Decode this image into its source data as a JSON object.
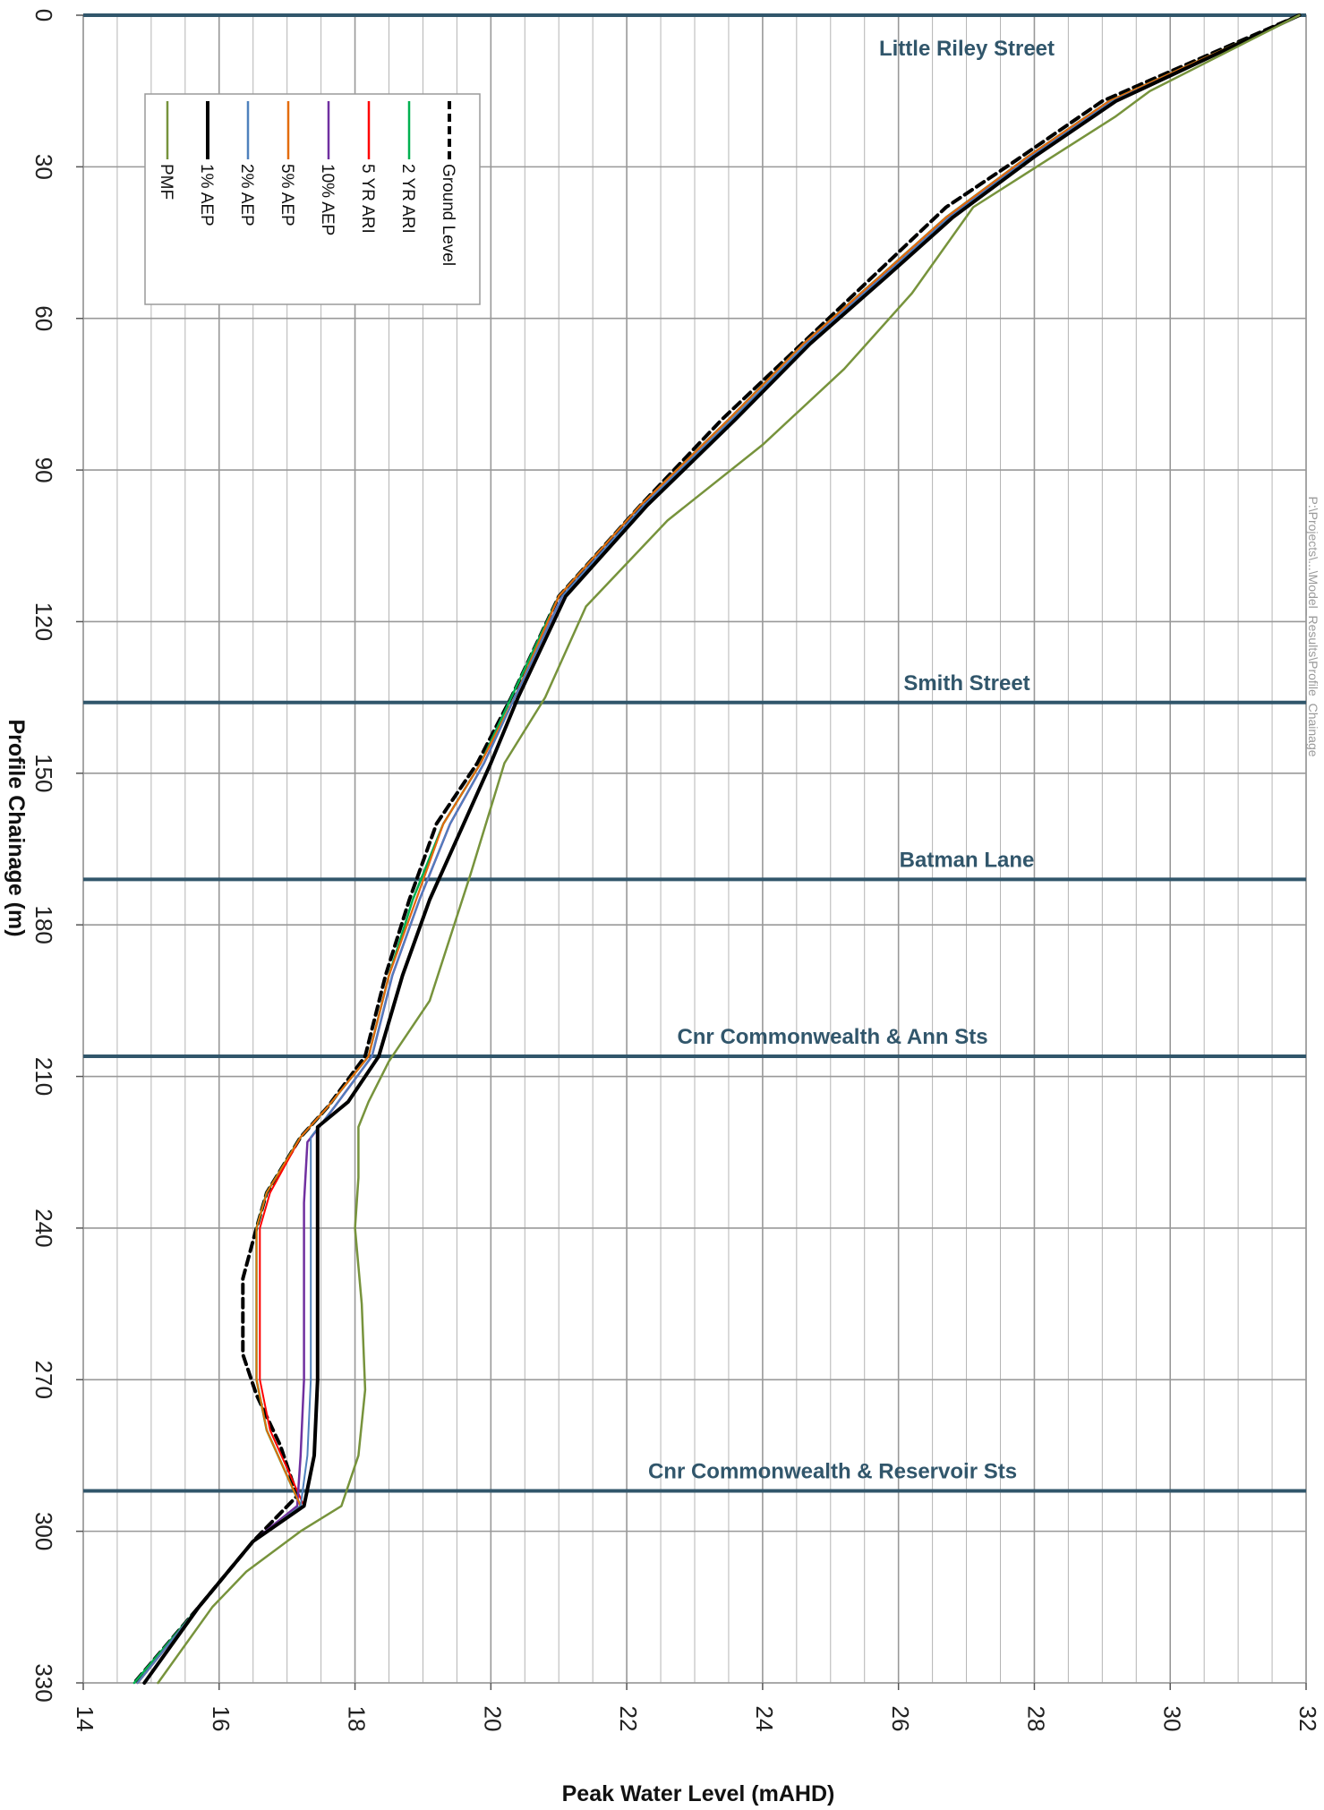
{
  "chart_data": {
    "type": "line",
    "title": "",
    "xlabel": "Peak Water Level (mAHD)",
    "ylabel": "Profile Chainage (m)",
    "xlim": [
      14,
      32
    ],
    "ylim": [
      0,
      330
    ],
    "x_ticks": [
      "14",
      "16",
      "18",
      "20",
      "22",
      "24",
      "26",
      "28",
      "30",
      "32"
    ],
    "y_ticks": [
      "0",
      "30",
      "60",
      "90",
      "120",
      "150",
      "180",
      "210",
      "240",
      "270",
      "300",
      "330"
    ],
    "grid": "on",
    "legend_position": "top-left",
    "colors": {
      "grid": "#b4b4b4",
      "street_line": "#31566b",
      "street_label": "#31566b"
    },
    "stray_text": "P:\\Projects\\...\\Model_Results\\Profile_Chainage",
    "streets": [
      {
        "label": "Little Riley Street",
        "chainage": 0
      },
      {
        "label": "Smith Street",
        "chainage": 136
      },
      {
        "label": "Batman Lane",
        "chainage": 171
      },
      {
        "label": "Cnr Commonwealth & Ann Sts",
        "chainage": 206
      },
      {
        "label": "Cnr Commonwealth & Reservoir Sts",
        "chainage": 292
      }
    ],
    "series": [
      {
        "name": "PMF",
        "color": "#77933c",
        "width": 2.5,
        "dash": "",
        "points": [
          [
            31.9,
            0
          ],
          [
            29.7,
            15
          ],
          [
            29.2,
            20
          ],
          [
            27.1,
            38
          ],
          [
            26.2,
            55
          ],
          [
            25.2,
            70
          ],
          [
            24.0,
            85
          ],
          [
            22.6,
            100
          ],
          [
            21.4,
            117
          ],
          [
            20.8,
            135
          ],
          [
            20.2,
            148
          ],
          [
            19.7,
            170
          ],
          [
            19.1,
            195
          ],
          [
            18.5,
            207
          ],
          [
            18.2,
            215
          ],
          [
            18.05,
            220
          ],
          [
            18.05,
            230
          ],
          [
            18.0,
            240
          ],
          [
            18.1,
            255
          ],
          [
            18.15,
            272
          ],
          [
            18.05,
            285
          ],
          [
            17.8,
            295
          ],
          [
            17.2,
            300
          ],
          [
            16.4,
            308
          ],
          [
            15.9,
            315
          ],
          [
            15.1,
            330
          ]
        ]
      },
      {
        "name": "1% AEP",
        "color": "#000000",
        "width": 4,
        "dash": "",
        "points": [
          [
            31.9,
            0
          ],
          [
            29.2,
            17
          ],
          [
            28.0,
            28
          ],
          [
            26.8,
            40
          ],
          [
            25.8,
            52
          ],
          [
            24.7,
            65
          ],
          [
            23.6,
            80
          ],
          [
            22.3,
            97
          ],
          [
            21.1,
            115
          ],
          [
            20.4,
            135
          ],
          [
            20.0,
            148
          ],
          [
            19.6,
            160
          ],
          [
            19.1,
            175
          ],
          [
            18.7,
            190
          ],
          [
            18.35,
            206
          ],
          [
            17.9,
            215
          ],
          [
            17.45,
            220
          ],
          [
            17.45,
            240
          ],
          [
            17.45,
            270
          ],
          [
            17.4,
            285
          ],
          [
            17.25,
            295
          ],
          [
            16.5,
            302
          ],
          [
            15.7,
            315
          ],
          [
            14.9,
            330
          ]
        ]
      },
      {
        "name": "2% AEP",
        "color": "#4f81bd",
        "width": 2,
        "dash": "",
        "points": [
          [
            31.9,
            0
          ],
          [
            29.15,
            17
          ],
          [
            27.95,
            28
          ],
          [
            26.75,
            40
          ],
          [
            25.75,
            52
          ],
          [
            24.65,
            65
          ],
          [
            23.55,
            80
          ],
          [
            22.25,
            97
          ],
          [
            21.05,
            115
          ],
          [
            20.35,
            135
          ],
          [
            19.9,
            148
          ],
          [
            19.4,
            160
          ],
          [
            18.95,
            175
          ],
          [
            18.55,
            190
          ],
          [
            18.25,
            206
          ],
          [
            17.7,
            216
          ],
          [
            17.35,
            222
          ],
          [
            17.35,
            240
          ],
          [
            17.35,
            270
          ],
          [
            17.3,
            285
          ],
          [
            17.2,
            295
          ],
          [
            16.5,
            302
          ],
          [
            15.7,
            315
          ],
          [
            14.8,
            330
          ]
        ]
      },
      {
        "name": "5% AEP",
        "color": "#e46c0a",
        "width": 2,
        "dash": "",
        "points": [
          [
            31.9,
            0
          ],
          [
            29.1,
            17
          ],
          [
            27.9,
            28
          ],
          [
            26.7,
            40
          ],
          [
            25.7,
            52
          ],
          [
            24.6,
            65
          ],
          [
            23.5,
            80
          ],
          [
            22.2,
            97
          ],
          [
            21.0,
            115
          ],
          [
            20.35,
            135
          ],
          [
            19.85,
            148
          ],
          [
            19.3,
            160
          ],
          [
            18.9,
            175
          ],
          [
            18.5,
            190
          ],
          [
            18.2,
            206
          ],
          [
            17.6,
            216
          ],
          [
            17.2,
            222
          ],
          [
            16.7,
            233
          ],
          [
            16.55,
            240
          ],
          [
            16.55,
            270
          ],
          [
            16.7,
            280
          ],
          [
            17.2,
            295
          ],
          [
            16.5,
            302
          ],
          [
            15.7,
            315
          ],
          [
            14.8,
            330
          ]
        ]
      },
      {
        "name": "10% AEP",
        "color": "#7030a0",
        "width": 2.5,
        "dash": "",
        "points": [
          [
            31.9,
            0
          ],
          [
            29.15,
            17
          ],
          [
            27.95,
            28
          ],
          [
            26.75,
            40
          ],
          [
            25.75,
            52
          ],
          [
            24.65,
            65
          ],
          [
            23.55,
            80
          ],
          [
            22.25,
            97
          ],
          [
            21.05,
            115
          ],
          [
            20.35,
            135
          ],
          [
            19.9,
            148
          ],
          [
            19.4,
            160
          ],
          [
            18.95,
            175
          ],
          [
            18.55,
            190
          ],
          [
            18.25,
            206
          ],
          [
            17.7,
            216
          ],
          [
            17.3,
            223
          ],
          [
            17.25,
            235
          ],
          [
            17.25,
            270
          ],
          [
            17.2,
            285
          ],
          [
            17.15,
            295
          ],
          [
            16.5,
            302
          ],
          [
            15.7,
            315
          ],
          [
            14.8,
            330
          ]
        ]
      },
      {
        "name": "5 YR ARI",
        "color": "#ff0000",
        "width": 2,
        "dash": "",
        "points": [
          [
            31.9,
            0
          ],
          [
            29.1,
            17
          ],
          [
            27.9,
            28
          ],
          [
            26.7,
            40
          ],
          [
            25.7,
            52
          ],
          [
            24.6,
            65
          ],
          [
            23.5,
            80
          ],
          [
            22.2,
            97
          ],
          [
            21.0,
            115
          ],
          [
            20.35,
            135
          ],
          [
            19.85,
            148
          ],
          [
            19.3,
            160
          ],
          [
            18.9,
            175
          ],
          [
            18.5,
            190
          ],
          [
            18.2,
            206
          ],
          [
            17.6,
            216
          ],
          [
            17.2,
            222
          ],
          [
            16.75,
            233
          ],
          [
            16.6,
            240
          ],
          [
            16.6,
            270
          ],
          [
            16.75,
            280
          ],
          [
            17.25,
            295
          ],
          [
            16.5,
            302
          ],
          [
            15.7,
            315
          ],
          [
            14.8,
            330
          ]
        ]
      },
      {
        "name": "2 YR ARI",
        "color": "#00b050",
        "width": 2.5,
        "dash": "",
        "points": [
          [
            31.9,
            0
          ],
          [
            29.1,
            17
          ],
          [
            27.9,
            28
          ],
          [
            26.7,
            40
          ],
          [
            25.7,
            52
          ],
          [
            24.6,
            65
          ],
          [
            23.5,
            80
          ],
          [
            22.2,
            97
          ],
          [
            21.0,
            115
          ],
          [
            20.3,
            135
          ],
          [
            19.85,
            148
          ],
          [
            19.3,
            160
          ],
          [
            18.85,
            175
          ],
          [
            18.5,
            190
          ],
          [
            18.2,
            206
          ],
          [
            17.6,
            216
          ],
          [
            17.2,
            222
          ],
          [
            16.7,
            233
          ],
          [
            16.55,
            240
          ],
          [
            16.55,
            270
          ],
          [
            16.7,
            280
          ],
          [
            17.2,
            295
          ],
          [
            16.5,
            302
          ],
          [
            15.7,
            315
          ],
          [
            14.75,
            330
          ]
        ]
      },
      {
        "name": "Ground Level",
        "color": "#000000",
        "width": 4,
        "dash": "10,6",
        "points": [
          [
            31.9,
            0
          ],
          [
            29.0,
            17
          ],
          [
            27.7,
            29
          ],
          [
            26.7,
            38
          ],
          [
            25.6,
            52
          ],
          [
            24.5,
            66
          ],
          [
            23.4,
            80
          ],
          [
            22.2,
            97
          ],
          [
            21.0,
            115
          ],
          [
            20.3,
            135
          ],
          [
            19.8,
            148
          ],
          [
            19.2,
            160
          ],
          [
            18.8,
            175
          ],
          [
            18.45,
            190
          ],
          [
            18.15,
            206
          ],
          [
            17.6,
            216
          ],
          [
            17.2,
            222
          ],
          [
            16.7,
            233
          ],
          [
            16.55,
            240
          ],
          [
            16.35,
            250
          ],
          [
            16.35,
            265
          ],
          [
            16.55,
            273
          ],
          [
            16.9,
            283
          ],
          [
            17.15,
            293
          ],
          [
            16.5,
            302
          ],
          [
            15.7,
            315
          ],
          [
            14.75,
            330
          ]
        ]
      }
    ]
  }
}
